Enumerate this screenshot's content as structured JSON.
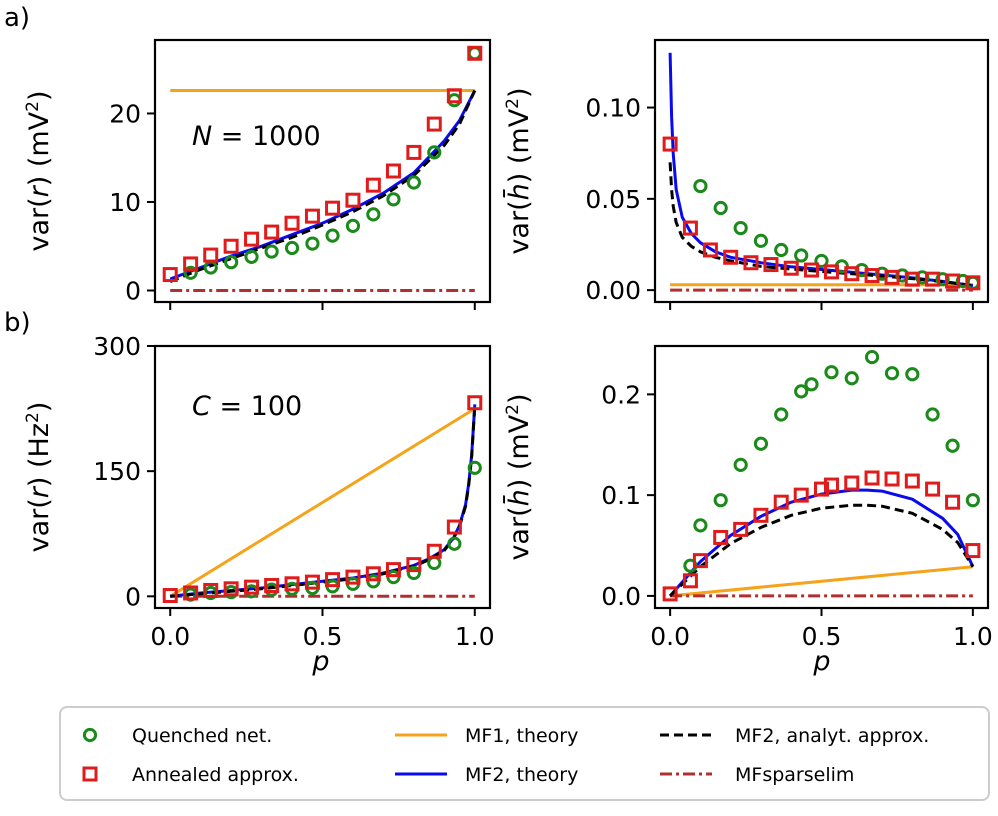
{
  "figure": {
    "panel_labels": [
      "a)",
      "b)"
    ],
    "xlabel": "p",
    "legend": [
      {
        "key": "quenched",
        "label": "Quenched net.",
        "color": "#1a8a1a",
        "style": "marker-circle"
      },
      {
        "key": "annealed",
        "label": "Annealed approx.",
        "color": "#e01b1b",
        "style": "marker-square"
      },
      {
        "key": "mf1",
        "label": "MF1, theory",
        "color": "#f5a31a",
        "style": "solid"
      },
      {
        "key": "mf2",
        "label": "MF2, theory",
        "color": "#0a0aee",
        "style": "solid"
      },
      {
        "key": "mf2approx",
        "label": "MF2, analyt. approx.",
        "color": "#000000",
        "style": "dashed"
      },
      {
        "key": "sparse",
        "label": "MFsparselim",
        "color": "#b03030",
        "style": "dashdot"
      }
    ]
  },
  "chart_data": [
    {
      "id": "a-left",
      "type": "scatter+line",
      "ylabel_main": "var(",
      "ylabel_var": "r",
      "ylabel_unit": ") (mV",
      "annotation_var": "N",
      "annotation_rest": " = 1000",
      "xlim": [
        -0.05,
        1.05
      ],
      "ylim": [
        -1.3,
        28.3
      ],
      "xticks": [
        0.0,
        0.5,
        1.0
      ],
      "xtick_labels_visible": false,
      "yticks": [
        0,
        10,
        20
      ],
      "ytick_labels": [
        "0",
        "10",
        "20"
      ],
      "series": {
        "quenched": {
          "x": [
            0.067,
            0.133,
            0.2,
            0.267,
            0.333,
            0.4,
            0.467,
            0.533,
            0.6,
            0.667,
            0.733,
            0.8,
            0.867,
            0.933,
            1.0
          ],
          "y": [
            2.0,
            2.6,
            3.2,
            3.8,
            4.4,
            4.8,
            5.3,
            6.2,
            7.3,
            8.6,
            10.3,
            12.2,
            15.6,
            21.5,
            26.8
          ]
        },
        "annealed": {
          "x": [
            0.0,
            0.067,
            0.133,
            0.2,
            0.267,
            0.333,
            0.4,
            0.467,
            0.533,
            0.6,
            0.667,
            0.733,
            0.8,
            0.867,
            0.933,
            1.0
          ],
          "y": [
            1.8,
            3.0,
            4.0,
            5.0,
            5.8,
            6.6,
            7.6,
            8.4,
            9.3,
            10.2,
            11.9,
            13.5,
            15.6,
            18.8,
            22.0,
            26.8
          ]
        },
        "mf1": {
          "x": [
            0.0,
            1.0
          ],
          "y": [
            22.6,
            22.6
          ]
        },
        "mf2": {
          "x": [
            0.0,
            0.1,
            0.2,
            0.3,
            0.4,
            0.5,
            0.6,
            0.7,
            0.8,
            0.9,
            0.95,
            1.0
          ],
          "y": [
            1.3,
            2.6,
            3.9,
            5.0,
            6.3,
            7.6,
            9.2,
            11.0,
            13.3,
            16.9,
            19.2,
            22.6
          ]
        },
        "mf2approx": {
          "x": [
            0.0,
            0.1,
            0.2,
            0.3,
            0.4,
            0.5,
            0.6,
            0.7,
            0.8,
            0.9,
            0.95,
            1.0
          ],
          "y": [
            1.0,
            2.4,
            3.6,
            4.8,
            6.0,
            7.4,
            8.9,
            10.7,
            13.0,
            16.4,
            18.8,
            22.6
          ]
        },
        "sparse": {
          "x": [
            0.0,
            1.0
          ],
          "y": [
            0.0,
            0.0
          ]
        }
      }
    },
    {
      "id": "a-right",
      "type": "scatter+line",
      "ylabel_main": "var(",
      "ylabel_var": "h̄",
      "ylabel_unit": ") (mV",
      "xlim": [
        -0.05,
        1.05
      ],
      "ylim": [
        -0.0065,
        0.137
      ],
      "xticks": [
        0.0,
        0.5,
        1.0
      ],
      "xtick_labels_visible": false,
      "yticks": [
        0.0,
        0.05,
        0.1
      ],
      "ytick_labels": [
        "0.00",
        "0.05",
        "0.10"
      ],
      "series": {
        "quenched": {
          "x": [
            0.1,
            0.167,
            0.233,
            0.3,
            0.367,
            0.433,
            0.5,
            0.567,
            0.633,
            0.7,
            0.767,
            0.833,
            0.9,
            0.967,
            1.0
          ],
          "y": [
            0.057,
            0.045,
            0.034,
            0.027,
            0.022,
            0.019,
            0.016,
            0.013,
            0.011,
            0.009,
            0.008,
            0.007,
            0.006,
            0.005,
            0.004
          ]
        },
        "annealed": {
          "x": [
            0.0,
            0.067,
            0.133,
            0.2,
            0.267,
            0.333,
            0.4,
            0.467,
            0.533,
            0.6,
            0.667,
            0.733,
            0.8,
            0.867,
            0.933,
            1.0
          ],
          "y": [
            0.08,
            0.034,
            0.022,
            0.018,
            0.015,
            0.014,
            0.012,
            0.011,
            0.01,
            0.009,
            0.008,
            0.007,
            0.006,
            0.006,
            0.005,
            0.004
          ]
        },
        "mf1": {
          "x": [
            0.0,
            1.0
          ],
          "y": [
            0.003,
            0.003
          ]
        },
        "mf2": {
          "x": [
            0.0,
            0.005,
            0.01,
            0.02,
            0.04,
            0.07,
            0.1,
            0.15,
            0.2,
            0.3,
            0.4,
            0.5,
            0.6,
            0.7,
            0.8,
            0.9,
            1.0
          ],
          "y": [
            0.13,
            0.095,
            0.075,
            0.055,
            0.04,
            0.031,
            0.026,
            0.021,
            0.018,
            0.015,
            0.0128,
            0.0113,
            0.0098,
            0.0083,
            0.0067,
            0.0048,
            0.0025
          ]
        },
        "mf2approx": {
          "x": [
            0.0,
            0.005,
            0.01,
            0.02,
            0.04,
            0.07,
            0.1,
            0.15,
            0.2,
            0.3,
            0.4,
            0.5,
            0.6,
            0.7,
            0.8,
            0.9,
            1.0
          ],
          "y": [
            0.07,
            0.055,
            0.046,
            0.037,
            0.029,
            0.024,
            0.021,
            0.018,
            0.016,
            0.013,
            0.0115,
            0.0102,
            0.009,
            0.0077,
            0.0063,
            0.0046,
            0.0025
          ]
        },
        "sparse": {
          "x": [
            0.0,
            1.0
          ],
          "y": [
            0.0,
            0.0
          ]
        }
      }
    },
    {
      "id": "b-left",
      "type": "scatter+line",
      "ylabel_main": "var(",
      "ylabel_var": "r",
      "ylabel_unit": ") (Hz",
      "annotation_var": "C",
      "annotation_rest": " = 100",
      "xlim": [
        -0.05,
        1.05
      ],
      "ylim": [
        -14,
        300
      ],
      "xticks": [
        0.0,
        0.5,
        1.0
      ],
      "xtick_labels": [
        "0.0",
        "0.5",
        "1.0"
      ],
      "yticks": [
        0,
        150,
        300
      ],
      "ytick_labels": [
        "0",
        "150",
        "300"
      ],
      "series": {
        "quenched": {
          "x": [
            0.067,
            0.133,
            0.2,
            0.267,
            0.333,
            0.4,
            0.467,
            0.533,
            0.6,
            0.667,
            0.733,
            0.8,
            0.867,
            0.933,
            1.0
          ],
          "y": [
            2,
            4,
            5,
            6,
            8,
            9,
            10,
            12,
            15,
            18,
            23,
            28,
            40,
            63,
            154
          ]
        },
        "annealed": {
          "x": [
            0.0,
            0.067,
            0.133,
            0.2,
            0.267,
            0.333,
            0.4,
            0.467,
            0.533,
            0.6,
            0.667,
            0.733,
            0.8,
            0.867,
            0.933,
            1.0
          ],
          "y": [
            1,
            4,
            7,
            9,
            11,
            13,
            15,
            17,
            20,
            23,
            27,
            32,
            38,
            54,
            83,
            232
          ]
        },
        "mf1": {
          "x": [
            0.0,
            1.0
          ],
          "y": [
            0,
            225
          ]
        },
        "mf2": {
          "x": [
            0.0,
            0.1,
            0.2,
            0.3,
            0.4,
            0.5,
            0.6,
            0.7,
            0.8,
            0.85,
            0.9,
            0.93,
            0.95,
            0.97,
            0.98,
            0.99,
            1.0
          ],
          "y": [
            0,
            4,
            7,
            10,
            14,
            18,
            22,
            28,
            37,
            45,
            56,
            70,
            85,
            110,
            135,
            170,
            230
          ]
        },
        "mf2approx": {
          "x": [
            0.0,
            0.1,
            0.2,
            0.3,
            0.4,
            0.5,
            0.6,
            0.7,
            0.8,
            0.85,
            0.9,
            0.93,
            0.95,
            0.97,
            0.98,
            0.99,
            1.0
          ],
          "y": [
            0,
            3,
            6,
            9,
            13,
            17,
            21,
            27,
            36,
            44,
            55,
            69,
            84,
            108,
            133,
            168,
            228
          ]
        },
        "sparse": {
          "x": [
            0.0,
            1.0
          ],
          "y": [
            0,
            0
          ]
        }
      }
    },
    {
      "id": "b-right",
      "type": "scatter+line",
      "ylabel_main": "var(",
      "ylabel_var": "h̄",
      "ylabel_unit": ") (mV",
      "xlim": [
        -0.05,
        1.05
      ],
      "ylim": [
        -0.012,
        0.248
      ],
      "xticks": [
        0.0,
        0.5,
        1.0
      ],
      "xtick_labels": [
        "0.0",
        "0.5",
        "1.0"
      ],
      "yticks": [
        0.0,
        0.1,
        0.2
      ],
      "ytick_labels": [
        "0.0",
        "0.1",
        "0.2"
      ],
      "series": {
        "quenched": {
          "x": [
            0.067,
            0.1,
            0.167,
            0.233,
            0.3,
            0.367,
            0.433,
            0.467,
            0.533,
            0.6,
            0.667,
            0.733,
            0.8,
            0.867,
            0.933,
            1.0
          ],
          "y": [
            0.03,
            0.07,
            0.095,
            0.13,
            0.151,
            0.18,
            0.203,
            0.21,
            0.222,
            0.216,
            0.237,
            0.221,
            0.22,
            0.18,
            0.149,
            0.095
          ]
        },
        "annealed": {
          "x": [
            0.0,
            0.067,
            0.1,
            0.167,
            0.233,
            0.3,
            0.367,
            0.433,
            0.5,
            0.533,
            0.6,
            0.667,
            0.733,
            0.8,
            0.867,
            0.933,
            1.0
          ],
          "y": [
            0.002,
            0.015,
            0.035,
            0.058,
            0.066,
            0.08,
            0.093,
            0.1,
            0.106,
            0.11,
            0.112,
            0.117,
            0.116,
            0.114,
            0.106,
            0.093,
            0.045
          ]
        },
        "mf1": {
          "x": [
            0.0,
            1.0
          ],
          "y": [
            0.0,
            0.029
          ]
        },
        "mf2": {
          "x": [
            0.0,
            0.1,
            0.2,
            0.3,
            0.4,
            0.5,
            0.6,
            0.65,
            0.7,
            0.8,
            0.9,
            0.95,
            1.0
          ],
          "y": [
            0.0,
            0.034,
            0.06,
            0.079,
            0.093,
            0.101,
            0.105,
            0.105,
            0.104,
            0.096,
            0.077,
            0.061,
            0.029
          ]
        },
        "mf2approx": {
          "x": [
            0.0,
            0.1,
            0.2,
            0.3,
            0.4,
            0.5,
            0.6,
            0.65,
            0.7,
            0.8,
            0.9,
            0.95,
            1.0
          ],
          "y": [
            0.0,
            0.029,
            0.052,
            0.068,
            0.08,
            0.087,
            0.09,
            0.09,
            0.089,
            0.082,
            0.066,
            0.053,
            0.029
          ]
        },
        "sparse": {
          "x": [
            0.0,
            1.0
          ],
          "y": [
            0.0,
            0.0
          ]
        }
      }
    }
  ]
}
